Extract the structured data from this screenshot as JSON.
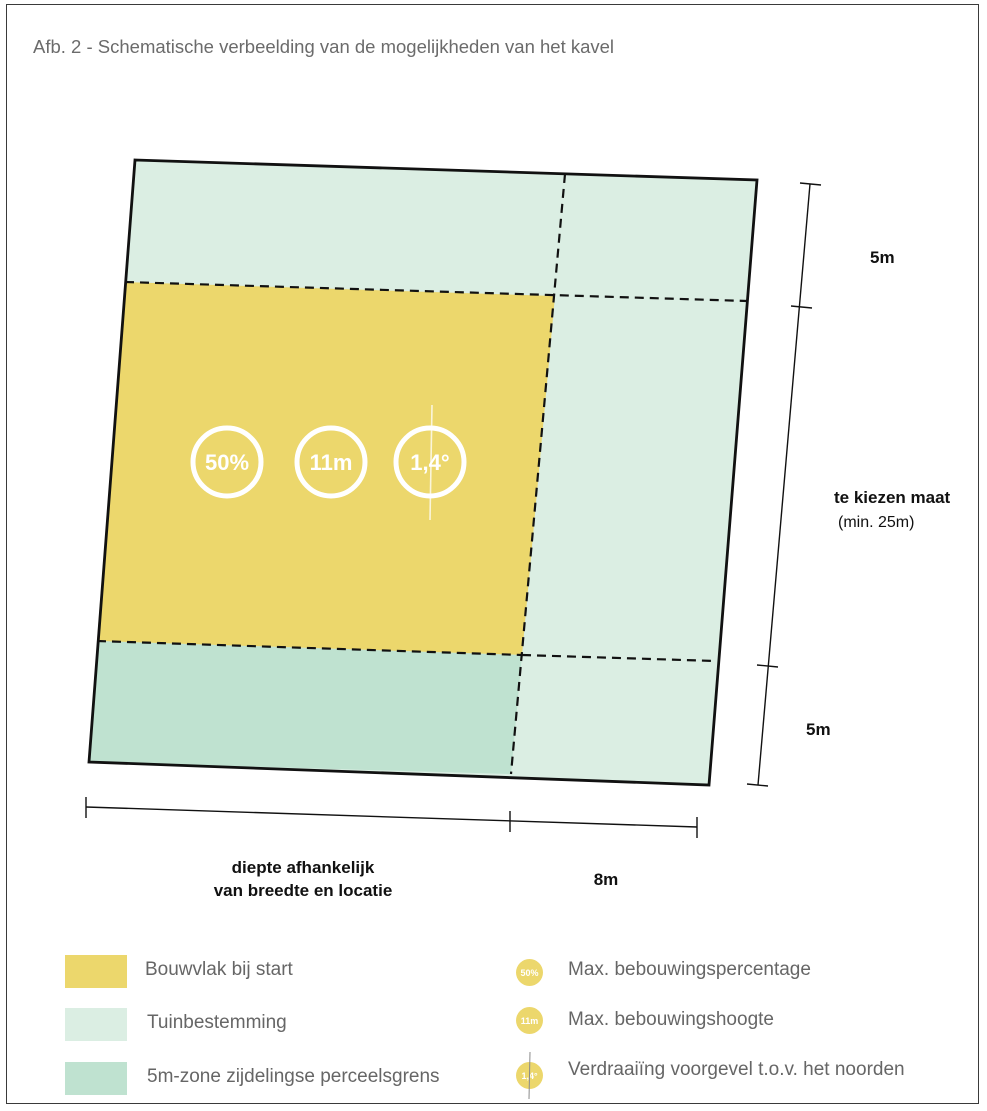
{
  "caption": "Afb. 2 - Schematische verbeelding van de mogelijkheden van het kavel",
  "colors": {
    "bouwvlak": "#ecd76c",
    "tuin": "#dbeee3",
    "zone": "#bfe2d0",
    "outline": "#111111"
  },
  "badges": {
    "percentage": "50%",
    "height": "11m",
    "angle": "1,4°"
  },
  "dimensions": {
    "right_top": "5m",
    "right_middle_bold": "te kiezen maat",
    "right_middle_sub": "(min. 25m)",
    "right_bottom": "5m",
    "bottom_left_line1": "diepte afhankelijk",
    "bottom_left_line2": "van breedte en locatie",
    "bottom_right": "8m"
  },
  "legend": {
    "areas": [
      {
        "label": "Bouwvlak bij start",
        "color": "#ecd76c"
      },
      {
        "label": "Tuinbestemming",
        "color": "#dbeee3"
      },
      {
        "label": "5m-zone zijdelingse perceelsgrens",
        "color": "#bfe2d0"
      }
    ],
    "symbols": [
      {
        "icon": "50%",
        "label": "Max. bebouwingspercentage"
      },
      {
        "icon": "11m",
        "label": "Max. bebouwingshoogte"
      },
      {
        "icon": "1,4°",
        "label": "Verdraaiïng voorgevel t.o.v. het noorden"
      }
    ]
  }
}
